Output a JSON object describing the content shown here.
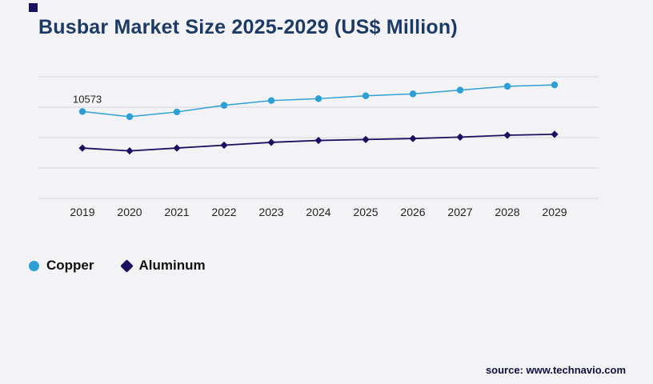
{
  "page": {
    "title": "Busbar Market Size 2025-2029 (US$ Million)",
    "source": "source: www.technavio.com"
  },
  "colors": {
    "title": "#1b3a66",
    "gridline": "#d7d7dc",
    "copper": "#2d9fd6",
    "aluminum": "#1a1060"
  },
  "legend": [
    {
      "label": "Copper",
      "color": "#2d9fd6",
      "marker": "circle"
    },
    {
      "label": "Aluminum",
      "color": "#1a1060",
      "marker": "diamond"
    }
  ],
  "chart_data": {
    "type": "line",
    "title": "Busbar Market Size 2025-2029 (US$ Million)",
    "categories": [
      "2019",
      "2020",
      "2021",
      "2022",
      "2023",
      "2024",
      "2025",
      "2026",
      "2027",
      "2028",
      "2029"
    ],
    "series": [
      {
        "name": "Copper",
        "color": "#2d9fd6",
        "marker": "circle",
        "values": [
          10573,
          10300,
          10550,
          10900,
          11150,
          11250,
          11400,
          11500,
          11700,
          11900,
          11975
        ]
      },
      {
        "name": "Aluminum",
        "color": "#1a1060",
        "marker": "diamond",
        "values": [
          8650,
          8500,
          8650,
          8800,
          8950,
          9050,
          9100,
          9150,
          9225,
          9325,
          9375
        ]
      }
    ],
    "annotations": [
      {
        "series": "Copper",
        "index": 0,
        "text": "10573"
      }
    ],
    "xlabel": "",
    "ylabel": "",
    "ylim": [
      6000,
      12400
    ],
    "grid": true,
    "gridline_count": 5,
    "legend_position": "bottom-left",
    "y_axis_labels_visible": false
  }
}
